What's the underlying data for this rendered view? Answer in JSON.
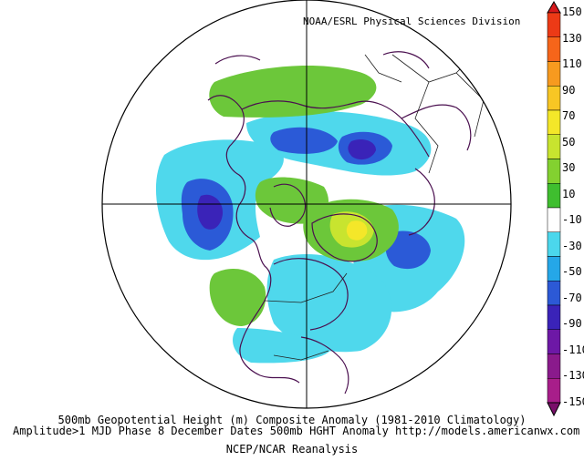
{
  "header": {
    "credit": "NOAA/ESRL Physical Sciences Division"
  },
  "caption": {
    "line1": "500mb Geopotential Height (m) Composite Anomaly (1981-2010 Climatology)",
    "line2": "Amplitude>1 MJD Phase 8 December Dates 500mb HGHT Anomaly http://models.americanwx.com",
    "line3": "NCEP/NCAR Reanalysis"
  },
  "legend": {
    "ticks": [
      "150",
      "130",
      "110",
      "90",
      "70",
      "50",
      "30",
      "10",
      "-10",
      "-30",
      "-50",
      "-70",
      "-90",
      "-110",
      "-130",
      "-150"
    ],
    "colors": [
      "#d7191c",
      "#ec3a16",
      "#f6651a",
      "#f79a1f",
      "#f8c624",
      "#f4e729",
      "#c8e42f",
      "#83d130",
      "#3fbe2f",
      "#ffffff",
      "#4bd7ec",
      "#25a7e8",
      "#2c59d6",
      "#3a23b8",
      "#6d18a6",
      "#8a1a8c",
      "#a81e8a",
      "#7a0f6a"
    ],
    "colors_note_hidden": ""
  },
  "map_style": {
    "coast_color": "#4a0f4f",
    "outline_color": "#000000"
  }
}
